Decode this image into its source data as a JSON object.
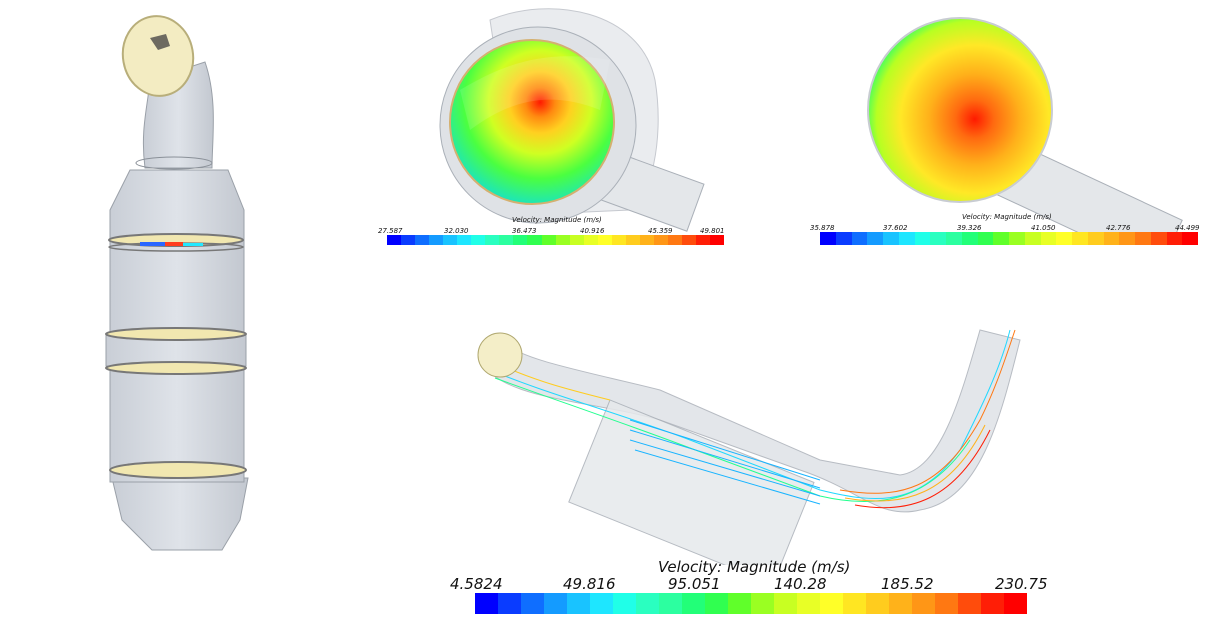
{
  "colorbars": {
    "top_center": {
      "title": "Velocity: Magnitude (m/s)",
      "ticks": [
        "27.587",
        "32.030",
        "36.473",
        "40.916",
        "45.359",
        "49.801"
      ]
    },
    "top_right": {
      "title": "Velocity: Magnitude (m/s)",
      "ticks": [
        "35.878",
        "37.602",
        "39.326",
        "41.050",
        "42.776",
        "44.499"
      ]
    },
    "bottom": {
      "title": "Velocity: Magnitude (m/s)",
      "ticks": [
        "4.5824",
        "49.816",
        "95.051",
        "140.28",
        "185.52",
        "230.75"
      ]
    }
  },
  "palette": [
    "#0000ff",
    "#0a3cff",
    "#0f6eff",
    "#149bff",
    "#19c3ff",
    "#1ee6ff",
    "#20ffe8",
    "#2affc0",
    "#2cffa0",
    "#22ff78",
    "#30ff50",
    "#60ff2a",
    "#9aff22",
    "#c8ff22",
    "#e8ff26",
    "#ffff28",
    "#ffe622",
    "#ffcc1e",
    "#ffb21a",
    "#ff9616",
    "#ff7812",
    "#ff4c0c",
    "#ff1e06",
    "#ff0000"
  ]
}
